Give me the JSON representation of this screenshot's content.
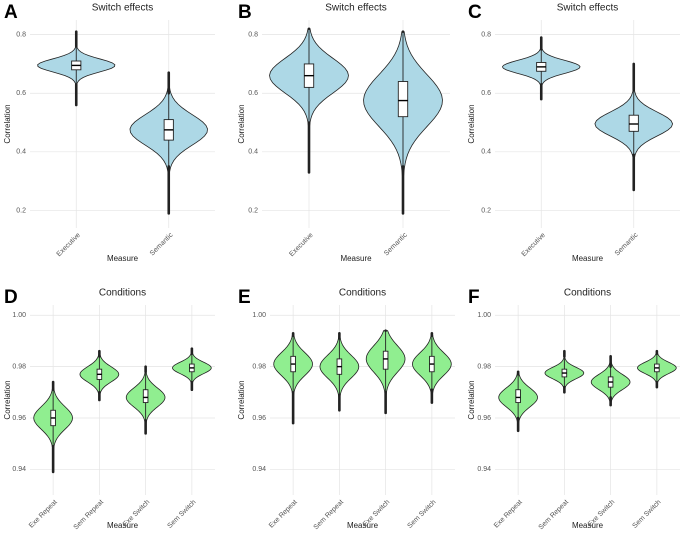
{
  "chart_data": [
    {
      "panel": "A",
      "type": "violin",
      "title": "Switch effects",
      "xlabel": "Measure",
      "ylabel": "Correlation",
      "categories": [
        "Executive",
        "Semantic"
      ],
      "color": "#add8e6",
      "ylim": [
        0.14,
        0.85
      ],
      "yticks": [
        0.2,
        0.4,
        0.6,
        0.8
      ],
      "grid": true,
      "boxes": [
        {
          "min": 0.56,
          "whisker_low": 0.63,
          "q1": 0.68,
          "median": 0.695,
          "q3": 0.71,
          "whisker_high": 0.76,
          "max": 0.81
        },
        {
          "min": 0.19,
          "whisker_low": 0.35,
          "q1": 0.44,
          "median": 0.475,
          "q3": 0.51,
          "whisker_high": 0.6,
          "max": 0.67
        }
      ]
    },
    {
      "panel": "B",
      "type": "violin",
      "title": "Switch effects",
      "xlabel": "Measure",
      "ylabel": "Correlation",
      "categories": [
        "Executive",
        "Semantic"
      ],
      "color": "#add8e6",
      "ylim": [
        0.14,
        0.85
      ],
      "yticks": [
        0.2,
        0.4,
        0.6,
        0.8
      ],
      "grid": true,
      "boxes": [
        {
          "min": 0.33,
          "whisker_low": 0.5,
          "q1": 0.62,
          "median": 0.66,
          "q3": 0.7,
          "whisker_high": 0.82,
          "max": 0.82
        },
        {
          "min": 0.19,
          "whisker_low": 0.35,
          "q1": 0.52,
          "median": 0.575,
          "q3": 0.64,
          "whisker_high": 0.81,
          "max": 0.81
        }
      ]
    },
    {
      "panel": "C",
      "type": "violin",
      "title": "Switch effects",
      "xlabel": "Measure",
      "ylabel": "Correlation",
      "categories": [
        "Executive",
        "Semantic"
      ],
      "color": "#add8e6",
      "ylim": [
        0.14,
        0.85
      ],
      "yticks": [
        0.2,
        0.4,
        0.6,
        0.8
      ],
      "grid": true,
      "boxes": [
        {
          "min": 0.58,
          "whisker_low": 0.63,
          "q1": 0.675,
          "median": 0.69,
          "q3": 0.705,
          "whisker_high": 0.75,
          "max": 0.79
        },
        {
          "min": 0.27,
          "whisker_low": 0.39,
          "q1": 0.47,
          "median": 0.495,
          "q3": 0.525,
          "whisker_high": 0.61,
          "max": 0.7
        }
      ]
    },
    {
      "panel": "D",
      "type": "violin",
      "title": "Conditions",
      "xlabel": "Measure",
      "ylabel": "Correlation",
      "categories": [
        "Exe Repeat",
        "Sem Repeat",
        "Exe Switch",
        "Sem Switch"
      ],
      "color": "#90ee90",
      "ylim": [
        0.93,
        1.004
      ],
      "yticks": [
        0.94,
        0.96,
        0.98,
        {
          "value": 1,
          "label": "1.00"
        }
      ],
      "grid": true,
      "boxes": [
        {
          "min": 0.939,
          "whisker_low": 0.949,
          "q1": 0.957,
          "median": 0.96,
          "q3": 0.963,
          "whisker_high": 0.971,
          "max": 0.974
        },
        {
          "min": 0.967,
          "whisker_low": 0.97,
          "q1": 0.975,
          "median": 0.977,
          "q3": 0.979,
          "whisker_high": 0.984,
          "max": 0.986
        },
        {
          "min": 0.954,
          "whisker_low": 0.959,
          "q1": 0.966,
          "median": 0.968,
          "q3": 0.971,
          "whisker_high": 0.978,
          "max": 0.98
        },
        {
          "min": 0.971,
          "whisker_low": 0.974,
          "q1": 0.978,
          "median": 0.9795,
          "q3": 0.981,
          "whisker_high": 0.985,
          "max": 0.987
        }
      ]
    },
    {
      "panel": "E",
      "type": "violin",
      "title": "Conditions",
      "xlabel": "Measure",
      "ylabel": "Correlation",
      "categories": [
        "Exe Repeat",
        "Sem Repeat",
        "Exe Switch",
        "Sem Switch"
      ],
      "color": "#90ee90",
      "ylim": [
        0.93,
        1.004
      ],
      "yticks": [
        0.94,
        0.96,
        0.98,
        {
          "value": 1,
          "label": "1.00"
        }
      ],
      "grid": true,
      "boxes": [
        {
          "min": 0.958,
          "whisker_low": 0.97,
          "q1": 0.978,
          "median": 0.981,
          "q3": 0.984,
          "whisker_high": 0.992,
          "max": 0.993
        },
        {
          "min": 0.963,
          "whisker_low": 0.969,
          "q1": 0.977,
          "median": 0.98,
          "q3": 0.983,
          "whisker_high": 0.991,
          "max": 0.993
        },
        {
          "min": 0.962,
          "whisker_low": 0.97,
          "q1": 0.979,
          "median": 0.983,
          "q3": 0.986,
          "whisker_high": 0.994,
          "max": 0.994
        },
        {
          "min": 0.966,
          "whisker_low": 0.971,
          "q1": 0.978,
          "median": 0.981,
          "q3": 0.984,
          "whisker_high": 0.992,
          "max": 0.993
        }
      ]
    },
    {
      "panel": "F",
      "type": "violin",
      "title": "Conditions",
      "xlabel": "Measure",
      "ylabel": "Correlation",
      "categories": [
        "Exe Repeat",
        "Sem Repeat",
        "Exe Switch",
        "Sem Switch"
      ],
      "color": "#90ee90",
      "ylim": [
        0.93,
        1.004
      ],
      "yticks": [
        0.94,
        0.96,
        0.98,
        {
          "value": 1,
          "label": "1.00"
        }
      ],
      "grid": true,
      "boxes": [
        {
          "min": 0.955,
          "whisker_low": 0.96,
          "q1": 0.966,
          "median": 0.968,
          "q3": 0.971,
          "whisker_high": 0.977,
          "max": 0.978
        },
        {
          "min": 0.97,
          "whisker_low": 0.972,
          "q1": 0.976,
          "median": 0.9775,
          "q3": 0.979,
          "whisker_high": 0.984,
          "max": 0.986
        },
        {
          "min": 0.965,
          "whisker_low": 0.968,
          "q1": 0.972,
          "median": 0.974,
          "q3": 0.976,
          "whisker_high": 0.98,
          "max": 0.984
        },
        {
          "min": 0.972,
          "whisker_low": 0.974,
          "q1": 0.978,
          "median": 0.9795,
          "q3": 0.981,
          "whisker_high": 0.985,
          "max": 0.986
        }
      ]
    }
  ]
}
